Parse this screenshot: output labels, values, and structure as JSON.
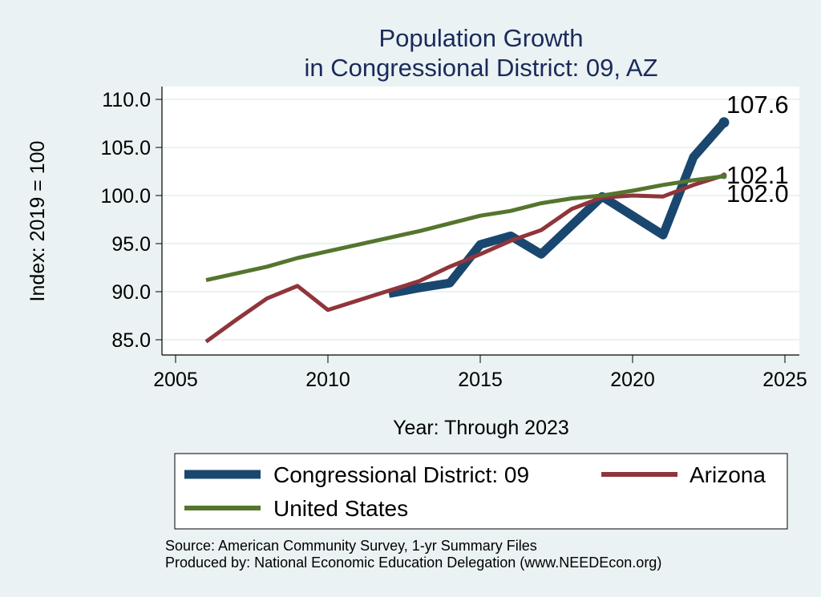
{
  "chart_data": {
    "type": "line",
    "title": [
      "Population Growth",
      "in Congressional District: 09, AZ"
    ],
    "xlabel": "Year: Through 2023",
    "ylabel": "Index: 2019 = 100",
    "xlim": [
      2005,
      2025
    ],
    "ylim": [
      85,
      110
    ],
    "xticks": [
      2005,
      2010,
      2015,
      2020,
      2025
    ],
    "yticks": [
      85,
      90,
      95,
      100,
      105,
      110
    ],
    "ytick_labels": [
      "85.0",
      "90.0",
      "95.0",
      "100.0",
      "105.0",
      "110.0"
    ],
    "grid": "horizontal",
    "series": [
      {
        "name": "Congressional District: 09",
        "color": "#1a476f",
        "x": [
          2012,
          2013,
          2014,
          2015,
          2016,
          2017,
          2018,
          2019,
          2020,
          2021,
          2022,
          2023
        ],
        "values": [
          89.8,
          90.4,
          90.9,
          94.9,
          95.8,
          93.9,
          96.9,
          99.9,
          97.9,
          95.9,
          104.0,
          107.6
        ],
        "end_label": "107.6"
      },
      {
        "name": "Arizona",
        "color": "#90353b",
        "x": [
          2006,
          2007,
          2008,
          2009,
          2010,
          2011,
          2012,
          2013,
          2014,
          2015,
          2016,
          2017,
          2018,
          2019,
          2020,
          2021,
          2022,
          2023
        ],
        "values": [
          84.8,
          87.1,
          89.3,
          90.6,
          88.1,
          89.1,
          90.1,
          91.1,
          92.6,
          93.9,
          95.3,
          96.4,
          98.6,
          99.8,
          100.0,
          99.9,
          101.1,
          102.1
        ],
        "end_label": "102.1"
      },
      {
        "name": "United States",
        "color": "#55752f",
        "x": [
          2006,
          2007,
          2008,
          2009,
          2010,
          2011,
          2012,
          2013,
          2014,
          2015,
          2016,
          2017,
          2018,
          2019,
          2020,
          2021,
          2022,
          2023
        ],
        "values": [
          91.2,
          91.9,
          92.6,
          93.5,
          94.2,
          94.9,
          95.6,
          96.3,
          97.1,
          97.9,
          98.4,
          99.2,
          99.7,
          100.0,
          100.5,
          101.1,
          101.6,
          102.0
        ],
        "end_label": "102.0"
      }
    ],
    "legend": {
      "placement": "bottom",
      "entries": [
        "Congressional District: 09",
        "Arizona",
        "United States"
      ]
    }
  },
  "footer": {
    "source": "Source: American Community Survey, 1-yr Summary Files",
    "producer": "Produced by: National Economic Education Delegation (www.NEEDEcon.org)"
  }
}
